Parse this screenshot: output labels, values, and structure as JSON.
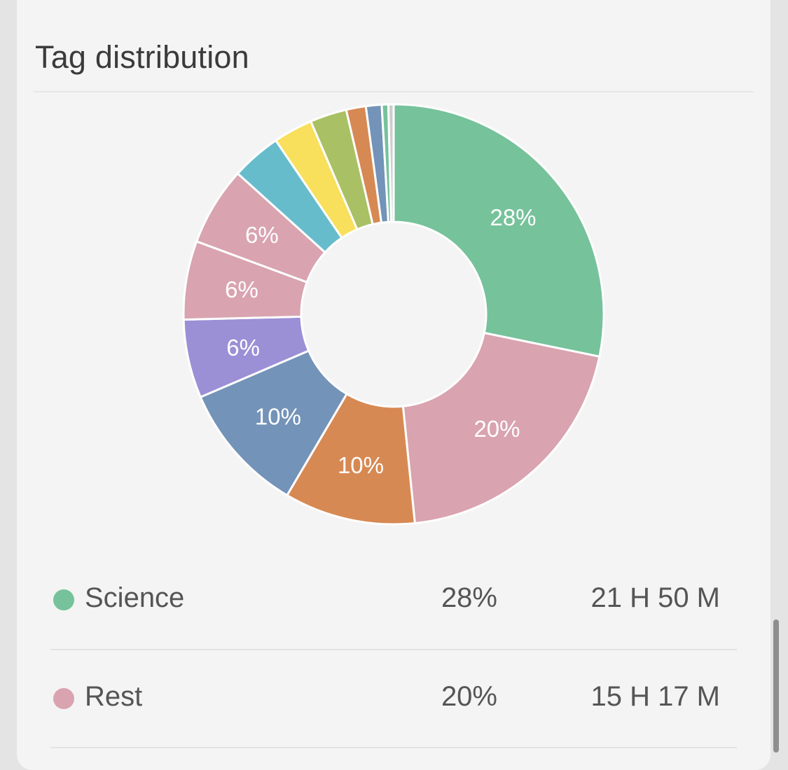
{
  "card": {
    "title": "Tag distribution"
  },
  "chart_data": {
    "type": "pie",
    "subtype": "donut",
    "slices": [
      {
        "label": "Science",
        "value": 28,
        "color": "#76c29b",
        "show_label": "28%"
      },
      {
        "label": "Rest",
        "value": 20,
        "color": "#d9a3b0",
        "show_label": "20%"
      },
      {
        "label": "",
        "value": 10,
        "color": "#d78953",
        "show_label": "10%"
      },
      {
        "label": "",
        "value": 10,
        "color": "#7393b8",
        "show_label": "10%"
      },
      {
        "label": "",
        "value": 6,
        "color": "#9b8fd6",
        "show_label": "6%"
      },
      {
        "label": "",
        "value": 6,
        "color": "#d9a3b0",
        "show_label": "6%"
      },
      {
        "label": "",
        "value": 6,
        "color": "#d9a3b0",
        "show_label": "6%"
      },
      {
        "label": "",
        "value": 3.8,
        "color": "#67bccc",
        "show_label": ""
      },
      {
        "label": "",
        "value": 3,
        "color": "#f8df5c",
        "show_label": ""
      },
      {
        "label": "",
        "value": 2.8,
        "color": "#a9c064",
        "show_label": ""
      },
      {
        "label": "",
        "value": 1.5,
        "color": "#d78953",
        "show_label": ""
      },
      {
        "label": "",
        "value": 1.2,
        "color": "#7393b8",
        "show_label": ""
      },
      {
        "label": "",
        "value": 0.5,
        "color": "#76c29b",
        "show_label": ""
      },
      {
        "label": "",
        "value": 0.4,
        "color": "#cccccc",
        "show_label": ""
      }
    ]
  },
  "legend": [
    {
      "name": "Science",
      "percent": "28%",
      "time": "21 H 50 M",
      "color": "#76c29b"
    },
    {
      "name": "Rest",
      "percent": "20%",
      "time": "15 H 17 M",
      "color": "#d9a3b0"
    }
  ]
}
